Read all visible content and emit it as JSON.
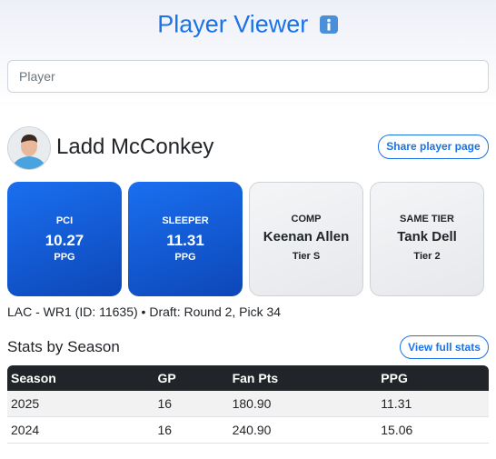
{
  "header": {
    "title": "Player Viewer"
  },
  "search": {
    "placeholder": "Player"
  },
  "player": {
    "name": "Ladd McConkey",
    "share_button": "Share player page",
    "info": "LAC - WR1 (ID: 11635) • Draft: Round 2, Pick 34"
  },
  "cards": [
    {
      "label": "PCI",
      "value": "10.27",
      "sub": "PPG"
    },
    {
      "label": "SLEEPER",
      "value": "11.31",
      "sub": "PPG"
    },
    {
      "label": "COMP",
      "value": "Keenan Allen",
      "sub": "Tier S"
    },
    {
      "label": "SAME TIER",
      "value": "Tank Dell",
      "sub": "Tier 2"
    }
  ],
  "stats": {
    "title": "Stats by Season",
    "button": "View full stats",
    "table": {
      "headers": [
        "Season",
        "GP",
        "Fan Pts",
        "PPG"
      ],
      "rows": [
        [
          "2025",
          "16",
          "180.90",
          "11.31"
        ],
        [
          "2024",
          "16",
          "240.90",
          "15.06"
        ]
      ]
    }
  }
}
